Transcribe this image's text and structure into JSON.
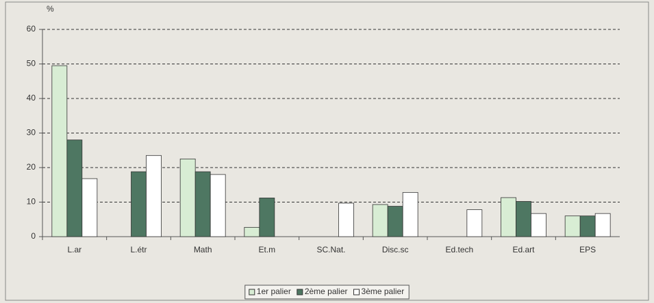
{
  "chart_data": {
    "type": "bar",
    "y_label": "%",
    "categories": [
      "L.ar",
      "L.étr",
      "Math",
      "Et.m",
      "SC.Nat.",
      "Disc.sc",
      "Ed.tech",
      "Ed.art",
      "EPS"
    ],
    "series": [
      {
        "name": "1er palier",
        "color": "#d8edd4",
        "values": [
          49.5,
          null,
          22.5,
          2.7,
          null,
          9.3,
          null,
          11.3,
          6.0
        ]
      },
      {
        "name": "2ème palier",
        "color": "#4e7762",
        "values": [
          28.0,
          18.8,
          18.8,
          11.2,
          null,
          8.8,
          null,
          10.2,
          6.0
        ]
      },
      {
        "name": "3ème palier",
        "color": "#ffffff",
        "values": [
          16.8,
          23.5,
          18.0,
          null,
          9.7,
          12.8,
          7.8,
          6.7,
          6.7
        ]
      }
    ],
    "ylim": [
      0,
      60
    ],
    "yticks": [
      0,
      10,
      20,
      30,
      40,
      50,
      60
    ],
    "grid": true,
    "legend": "bottom"
  }
}
